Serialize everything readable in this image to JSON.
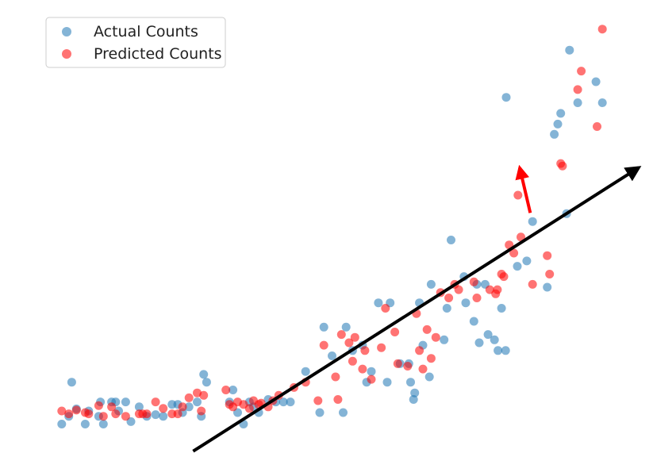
{
  "chart_data": {
    "type": "scatter",
    "xlim": [
      0,
      100
    ],
    "ylim": [
      0,
      100
    ],
    "grid": false,
    "legend_position": "top-left",
    "series": [
      {
        "name": "Actual Counts",
        "color": "#1f77b4",
        "points": [
          [
            1.6,
            2.6
          ],
          [
            2.8,
            4.5
          ],
          [
            3.3,
            12.8
          ],
          [
            4.1,
            6.3
          ],
          [
            5.6,
            2.6
          ],
          [
            6.2,
            5.8
          ],
          [
            7.9,
            4.5
          ],
          [
            8.2,
            8.0
          ],
          [
            8.7,
            2.6
          ],
          [
            10.1,
            8.0
          ],
          [
            10.8,
            8.0
          ],
          [
            11.3,
            5.8
          ],
          [
            12.5,
            8.0
          ],
          [
            13.4,
            3.2
          ],
          [
            14.8,
            6.8
          ],
          [
            16.1,
            4.5
          ],
          [
            17.6,
            4.9
          ],
          [
            18.9,
            4.5
          ],
          [
            20.4,
            7.4
          ],
          [
            21.4,
            7.4
          ],
          [
            22.2,
            5.4
          ],
          [
            23.3,
            6.8
          ],
          [
            24.7,
            8.0
          ],
          [
            25.4,
            4.5
          ],
          [
            25.8,
            14.7
          ],
          [
            26.3,
            12.8
          ],
          [
            30.2,
            8.0
          ],
          [
            30.8,
            10.9
          ],
          [
            31.6,
            5.4
          ],
          [
            32.6,
            2.6
          ],
          [
            33.6,
            8.0
          ],
          [
            34.3,
            6.8
          ],
          [
            35.2,
            5.4
          ],
          [
            36.8,
            8.6
          ],
          [
            38.1,
            8.0
          ],
          [
            39.4,
            8.0
          ],
          [
            40.6,
            8.0
          ],
          [
            43.2,
            15.4
          ],
          [
            45.6,
            5.4
          ],
          [
            46.3,
            26.2
          ],
          [
            47.7,
            19.2
          ],
          [
            49.6,
            5.4
          ],
          [
            50.1,
            26.2
          ],
          [
            51.2,
            20.5
          ],
          [
            52.9,
            21.8
          ],
          [
            53.6,
            12.8
          ],
          [
            54.4,
            15.4
          ],
          [
            55.6,
            32.1
          ],
          [
            57.1,
            12.8
          ],
          [
            57.6,
            32.1
          ],
          [
            59.3,
            17.3
          ],
          [
            60.8,
            17.3
          ],
          [
            61.1,
            12.8
          ],
          [
            61.6,
            8.6
          ],
          [
            61.8,
            10.2
          ],
          [
            62.6,
            32.1
          ],
          [
            63.2,
            21.8
          ],
          [
            64.3,
            14.1
          ],
          [
            64.6,
            36.6
          ],
          [
            66.8,
            23.1
          ],
          [
            67.3,
            30.8
          ],
          [
            68.0,
            47.4
          ],
          [
            70.2,
            38.5
          ],
          [
            70.5,
            32.1
          ],
          [
            71.9,
            27.6
          ],
          [
            72.4,
            36.6
          ],
          [
            72.8,
            22.4
          ],
          [
            73.8,
            36.6
          ],
          [
            74.3,
            24.4
          ],
          [
            75.4,
            23.1
          ],
          [
            76.0,
            20.5
          ],
          [
            76.6,
            30.8
          ],
          [
            77.4,
            82.1
          ],
          [
            77.3,
            20.5
          ],
          [
            79.3,
            41.0
          ],
          [
            80.9,
            42.3
          ],
          [
            81.9,
            51.9
          ],
          [
            84.4,
            35.9
          ],
          [
            85.6,
            73.1
          ],
          [
            86.2,
            75.6
          ],
          [
            86.7,
            78.2
          ],
          [
            87.7,
            53.8
          ],
          [
            88.2,
            93.6
          ],
          [
            89.6,
            80.8
          ],
          [
            92.7,
            85.9
          ],
          [
            93.8,
            80.8
          ]
        ]
      },
      {
        "name": "Predicted Counts",
        "color": "#ff0000",
        "points": [
          [
            1.6,
            5.8
          ],
          [
            2.8,
            5.1
          ],
          [
            4.1,
            6.0
          ],
          [
            5.6,
            5.4
          ],
          [
            6.2,
            5.1
          ],
          [
            7.9,
            7.1
          ],
          [
            8.7,
            4.5
          ],
          [
            10.1,
            6.8
          ],
          [
            10.8,
            5.1
          ],
          [
            12.5,
            4.5
          ],
          [
            14.8,
            5.1
          ],
          [
            15.4,
            5.1
          ],
          [
            16.1,
            5.1
          ],
          [
            17.6,
            8.0
          ],
          [
            18.9,
            6.4
          ],
          [
            20.4,
            5.1
          ],
          [
            21.4,
            5.1
          ],
          [
            22.2,
            6.8
          ],
          [
            23.3,
            9.0
          ],
          [
            24.7,
            10.2
          ],
          [
            25.4,
            5.8
          ],
          [
            25.8,
            9.6
          ],
          [
            29.6,
            10.9
          ],
          [
            30.2,
            7.4
          ],
          [
            30.8,
            6.8
          ],
          [
            31.6,
            8.0
          ],
          [
            32.6,
            7.4
          ],
          [
            33.6,
            6.4
          ],
          [
            34.3,
            8.3
          ],
          [
            35.2,
            7.4
          ],
          [
            35.6,
            7.7
          ],
          [
            36.8,
            6.8
          ],
          [
            37.6,
            8.3
          ],
          [
            38.6,
            9.6
          ],
          [
            41.2,
            11.5
          ],
          [
            43.2,
            12.8
          ],
          [
            45.3,
            8.3
          ],
          [
            46.3,
            21.8
          ],
          [
            48.3,
            14.1
          ],
          [
            48.7,
            8.6
          ],
          [
            49.3,
            24.4
          ],
          [
            50.6,
            22.4
          ],
          [
            51.2,
            17.9
          ],
          [
            51.6,
            23.7
          ],
          [
            52.9,
            16.0
          ],
          [
            53.3,
            20.5
          ],
          [
            54.4,
            13.5
          ],
          [
            56.1,
            21.2
          ],
          [
            56.8,
            30.8
          ],
          [
            58.4,
            25.0
          ],
          [
            58.9,
            17.3
          ],
          [
            60.6,
            16.7
          ],
          [
            62.1,
            29.5
          ],
          [
            62.6,
            20.5
          ],
          [
            63.2,
            16.0
          ],
          [
            63.9,
            25.6
          ],
          [
            64.6,
            18.6
          ],
          [
            65.4,
            23.7
          ],
          [
            66.2,
            34.6
          ],
          [
            67.6,
            33.3
          ],
          [
            68.6,
            36.6
          ],
          [
            69.3,
            35.3
          ],
          [
            71.9,
            37.2
          ],
          [
            72.4,
            33.3
          ],
          [
            74.6,
            35.3
          ],
          [
            75.6,
            34.3
          ],
          [
            75.9,
            35.3
          ],
          [
            76.6,
            39.1
          ],
          [
            77.0,
            38.5
          ],
          [
            77.9,
            46.2
          ],
          [
            78.7,
            44.2
          ],
          [
            79.4,
            58.3
          ],
          [
            79.9,
            48.1
          ],
          [
            81.9,
            36.6
          ],
          [
            84.4,
            43.6
          ],
          [
            84.8,
            39.1
          ],
          [
            86.7,
            66.0
          ],
          [
            87.0,
            65.4
          ],
          [
            89.6,
            84.0
          ],
          [
            90.2,
            88.5
          ],
          [
            92.9,
            75.0
          ],
          [
            93.8,
            98.7
          ]
        ]
      }
    ],
    "annotations": [
      {
        "type": "arrow",
        "color": "#000000",
        "from": [
          24.0,
          -4.0
        ],
        "to": [
          100.0,
          65.0
        ]
      },
      {
        "type": "arrow",
        "color": "#ff0000",
        "from": [
          81.5,
          54.0
        ],
        "to": [
          79.7,
          65.0
        ]
      }
    ]
  }
}
